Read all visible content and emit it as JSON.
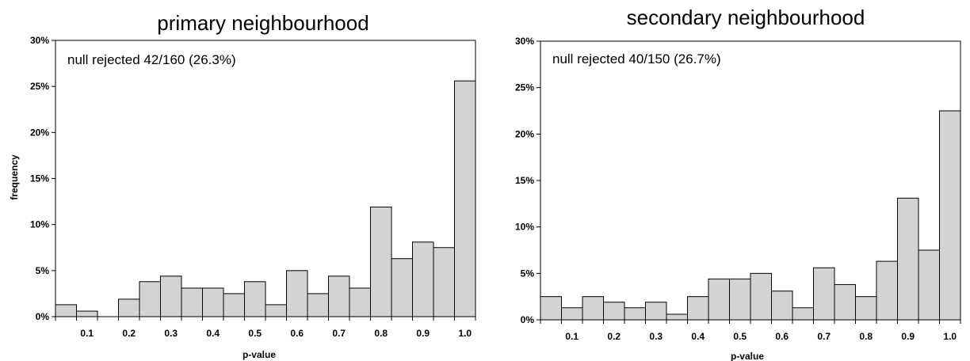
{
  "chart_data": [
    {
      "type": "bar",
      "title": "primary neighbourhood",
      "annotation": "null rejected 42/160 (26.3%)",
      "xlabel": "p-value",
      "ylabel": "frequency",
      "x_bin_width": 0.05,
      "x_range": [
        0,
        1
      ],
      "x_tick_labels": [
        "0.1",
        "0.2",
        "0.3",
        "0.4",
        "0.5",
        "0.6",
        "0.7",
        "0.8",
        "0.9",
        "1.0"
      ],
      "x_ticks": [
        0.1,
        0.2,
        0.3,
        0.4,
        0.5,
        0.6,
        0.7,
        0.8,
        0.9,
        1.0
      ],
      "ylim": [
        0,
        30
      ],
      "y_tick_labels": [
        "0%",
        "5%",
        "10%",
        "15%",
        "20%",
        "25%",
        "30%"
      ],
      "y_ticks": [
        0,
        5,
        10,
        15,
        20,
        25,
        30
      ],
      "values": [
        1.3,
        0.6,
        0,
        1.9,
        3.8,
        4.4,
        3.1,
        3.1,
        2.5,
        3.8,
        1.3,
        5.0,
        2.5,
        4.4,
        3.1,
        11.9,
        6.3,
        8.1,
        7.5,
        25.6
      ]
    },
    {
      "type": "bar",
      "title": "secondary neighbourhood",
      "annotation": "null rejected 40/150 (26.7%)",
      "xlabel": "p-value",
      "ylabel": "",
      "x_bin_width": 0.05,
      "x_range": [
        0,
        1
      ],
      "x_tick_labels": [
        "0.1",
        "0.2",
        "0.3",
        "0.4",
        "0.5",
        "0.6",
        "0.7",
        "0.8",
        "0.9",
        "1.0"
      ],
      "x_ticks": [
        0.1,
        0.2,
        0.3,
        0.4,
        0.5,
        0.6,
        0.7,
        0.8,
        0.9,
        1.0
      ],
      "ylim": [
        0,
        30
      ],
      "y_tick_labels": [
        "0%",
        "5%",
        "10%",
        "15%",
        "20%",
        "25%",
        "30%"
      ],
      "y_ticks": [
        0,
        5,
        10,
        15,
        20,
        25,
        30
      ],
      "values": [
        2.5,
        1.3,
        2.5,
        1.9,
        1.3,
        1.9,
        0.6,
        2.5,
        4.4,
        4.4,
        5.0,
        3.1,
        1.3,
        5.6,
        3.8,
        2.5,
        6.3,
        13.1,
        7.5,
        22.5
      ]
    }
  ]
}
